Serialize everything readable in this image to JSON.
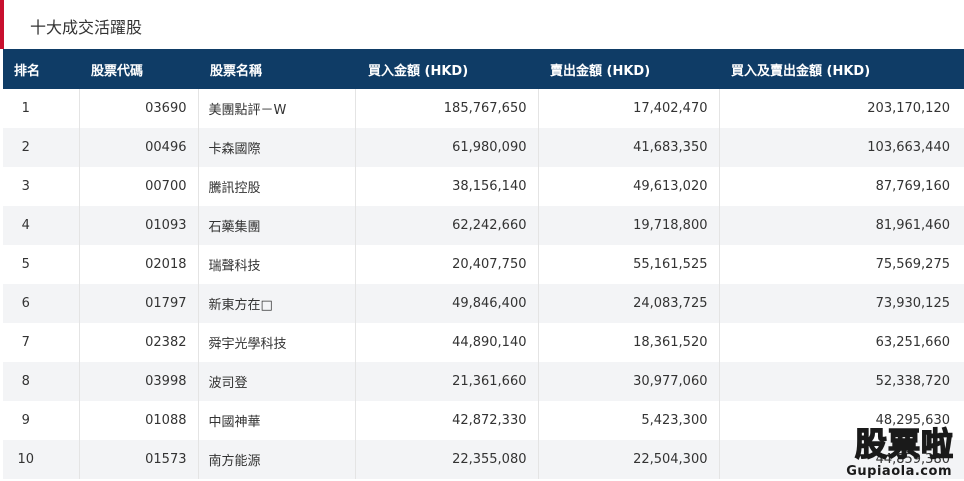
{
  "panel": {
    "title": "十大成交活躍股",
    "accent_color": "#c8102e",
    "header_bg": "#0f3c66"
  },
  "table": {
    "headers": {
      "rank": "排名",
      "code": "股票代碼",
      "name": "股票名稱",
      "buy": "買入金額 (HKD)",
      "sell": "賣出金額 (HKD)",
      "total": "買入及賣出金額 (HKD)"
    },
    "rows": [
      {
        "rank": "1",
        "code": "03690",
        "name": "美團點評－W",
        "buy": "185,767,650",
        "sell": "17,402,470",
        "total": "203,170,120"
      },
      {
        "rank": "2",
        "code": "00496",
        "name": "卡森國際",
        "buy": "61,980,090",
        "sell": "41,683,350",
        "total": "103,663,440"
      },
      {
        "rank": "3",
        "code": "00700",
        "name": "騰訊控股",
        "buy": "38,156,140",
        "sell": "49,613,020",
        "total": "87,769,160"
      },
      {
        "rank": "4",
        "code": "01093",
        "name": "石藥集團",
        "buy": "62,242,660",
        "sell": "19,718,800",
        "total": "81,961,460"
      },
      {
        "rank": "5",
        "code": "02018",
        "name": "瑞聲科技",
        "buy": "20,407,750",
        "sell": "55,161,525",
        "total": "75,569,275"
      },
      {
        "rank": "6",
        "code": "01797",
        "name": "新東方在□",
        "buy": "49,846,400",
        "sell": "24,083,725",
        "total": "73,930,125"
      },
      {
        "rank": "7",
        "code": "02382",
        "name": "舜宇光學科技",
        "buy": "44,890,140",
        "sell": "18,361,520",
        "total": "63,251,660"
      },
      {
        "rank": "8",
        "code": "03998",
        "name": "波司登",
        "buy": "21,361,660",
        "sell": "30,977,060",
        "total": "52,338,720"
      },
      {
        "rank": "9",
        "code": "01088",
        "name": "中國神華",
        "buy": "42,872,330",
        "sell": "5,423,300",
        "total": "48,295,630"
      },
      {
        "rank": "10",
        "code": "01573",
        "name": "南方能源",
        "buy": "22,355,080",
        "sell": "22,504,300",
        "total": "44,859,380"
      }
    ]
  },
  "watermark": {
    "logo_text": "股票",
    "logo_accent": "啦",
    "site": "Gupiaola.com"
  }
}
